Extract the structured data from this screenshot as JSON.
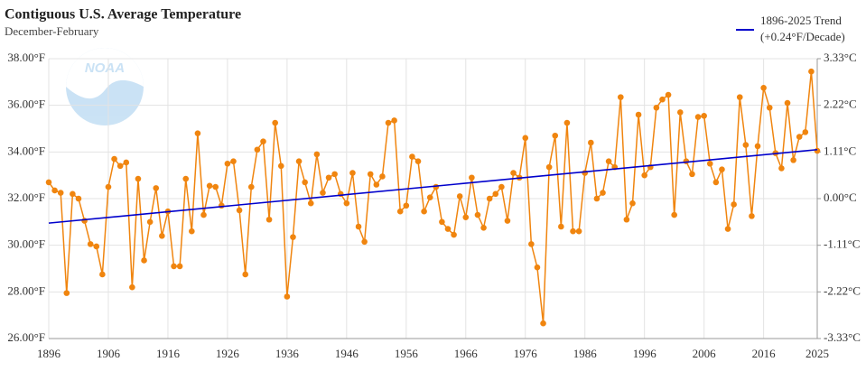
{
  "chart_data": {
    "type": "line",
    "title": "Contiguous U.S. Average Temperature",
    "subtitle": "December-February",
    "logo_text": "NOAA",
    "x": [
      1896,
      1897,
      1898,
      1899,
      1900,
      1901,
      1902,
      1903,
      1904,
      1905,
      1906,
      1907,
      1908,
      1909,
      1910,
      1911,
      1912,
      1913,
      1914,
      1915,
      1916,
      1917,
      1918,
      1919,
      1920,
      1921,
      1922,
      1923,
      1924,
      1925,
      1926,
      1927,
      1928,
      1929,
      1930,
      1931,
      1932,
      1933,
      1934,
      1935,
      1936,
      1937,
      1938,
      1939,
      1940,
      1941,
      1942,
      1943,
      1944,
      1945,
      1946,
      1947,
      1948,
      1949,
      1950,
      1951,
      1952,
      1953,
      1954,
      1955,
      1956,
      1957,
      1958,
      1959,
      1960,
      1961,
      1962,
      1963,
      1964,
      1965,
      1966,
      1967,
      1968,
      1969,
      1970,
      1971,
      1972,
      1973,
      1974,
      1975,
      1976,
      1977,
      1978,
      1979,
      1980,
      1981,
      1982,
      1983,
      1984,
      1985,
      1986,
      1987,
      1988,
      1989,
      1990,
      1991,
      1992,
      1993,
      1994,
      1995,
      1996,
      1997,
      1998,
      1999,
      2000,
      2001,
      2002,
      2003,
      2004,
      2005,
      2006,
      2007,
      2008,
      2009,
      2010,
      2011,
      2012,
      2013,
      2014,
      2015,
      2016,
      2017,
      2018,
      2019,
      2020,
      2021,
      2022,
      2023,
      2024,
      2025
    ],
    "series": [
      {
        "color": "#f0850f",
        "values": [
          32.7,
          32.35,
          32.25,
          27.95,
          32.2,
          32.0,
          31.05,
          30.05,
          29.95,
          28.75,
          32.5,
          33.7,
          33.4,
          33.55,
          28.2,
          32.85,
          29.35,
          31.0,
          32.45,
          30.4,
          31.45,
          29.1,
          29.1,
          32.85,
          30.6,
          34.8,
          31.3,
          32.55,
          32.5,
          31.7,
          33.5,
          33.6,
          31.5,
          28.75,
          32.5,
          34.1,
          34.45,
          31.1,
          35.25,
          33.4,
          27.8,
          30.35,
          33.6,
          32.7,
          31.8,
          33.9,
          32.25,
          32.9,
          33.05,
          32.2,
          31.8,
          33.1,
          30.8,
          30.15,
          33.05,
          32.6,
          32.95,
          35.25,
          35.35,
          31.45,
          31.7,
          33.8,
          33.6,
          31.45,
          32.05,
          32.5,
          31.0,
          30.7,
          30.45,
          32.1,
          31.2,
          32.9,
          31.3,
          30.75,
          32.0,
          32.2,
          32.5,
          31.05,
          33.1,
          32.9,
          34.6,
          30.05,
          29.05,
          26.65,
          33.35,
          34.7,
          30.8,
          35.25,
          30.6,
          30.6,
          33.1,
          34.4,
          32.0,
          32.25,
          33.6,
          33.35,
          36.35,
          31.1,
          31.8,
          35.6,
          33.0,
          33.35,
          35.9,
          36.25,
          36.45,
          31.3,
          35.7,
          33.6,
          33.05,
          35.5,
          35.55,
          33.5,
          32.7,
          33.25,
          30.7,
          31.75,
          36.35,
          34.3,
          31.25,
          34.25,
          36.75,
          35.9,
          33.95,
          33.3,
          36.1,
          33.65,
          34.65,
          34.85,
          37.45,
          34.05
        ]
      },
      {
        "name": "1896-2025 Trend",
        "color": "#0000cc",
        "x": [
          1896,
          2025
        ],
        "values": [
          30.95,
          34.1
        ]
      }
    ],
    "trend_label": "(+0.24°F/Decade)",
    "xlim": [
      1896,
      2025
    ],
    "xticks": [
      1896,
      1906,
      1916,
      1926,
      1936,
      1946,
      1956,
      1966,
      1976,
      1986,
      1996,
      2006,
      2016,
      2025
    ],
    "ylim": [
      26,
      38
    ],
    "yticks": [
      {
        "value": 26,
        "label": "26.00°F"
      },
      {
        "value": 28,
        "label": "28.00°F"
      },
      {
        "value": 30,
        "label": "30.00°F"
      },
      {
        "value": 32,
        "label": "32.00°F"
      },
      {
        "value": 34,
        "label": "34.00°F"
      },
      {
        "value": 36,
        "label": "36.00°F"
      },
      {
        "value": 38,
        "label": "38.00°F"
      }
    ],
    "y2lim": [
      -3.33,
      3.33
    ],
    "y2ticks": [
      {
        "value": -3.33,
        "label": "-3.33°C"
      },
      {
        "value": -2.22,
        "label": "-2.22°C"
      },
      {
        "value": -1.11,
        "label": "-1.11°C"
      },
      {
        "value": 0,
        "label": "0.00°C"
      },
      {
        "value": 1.11,
        "label": "1.11°C"
      },
      {
        "value": 2.22,
        "label": "2.22°C"
      },
      {
        "value": 3.33,
        "label": "3.33°C"
      }
    ],
    "grid": true,
    "legend": "top-right"
  }
}
